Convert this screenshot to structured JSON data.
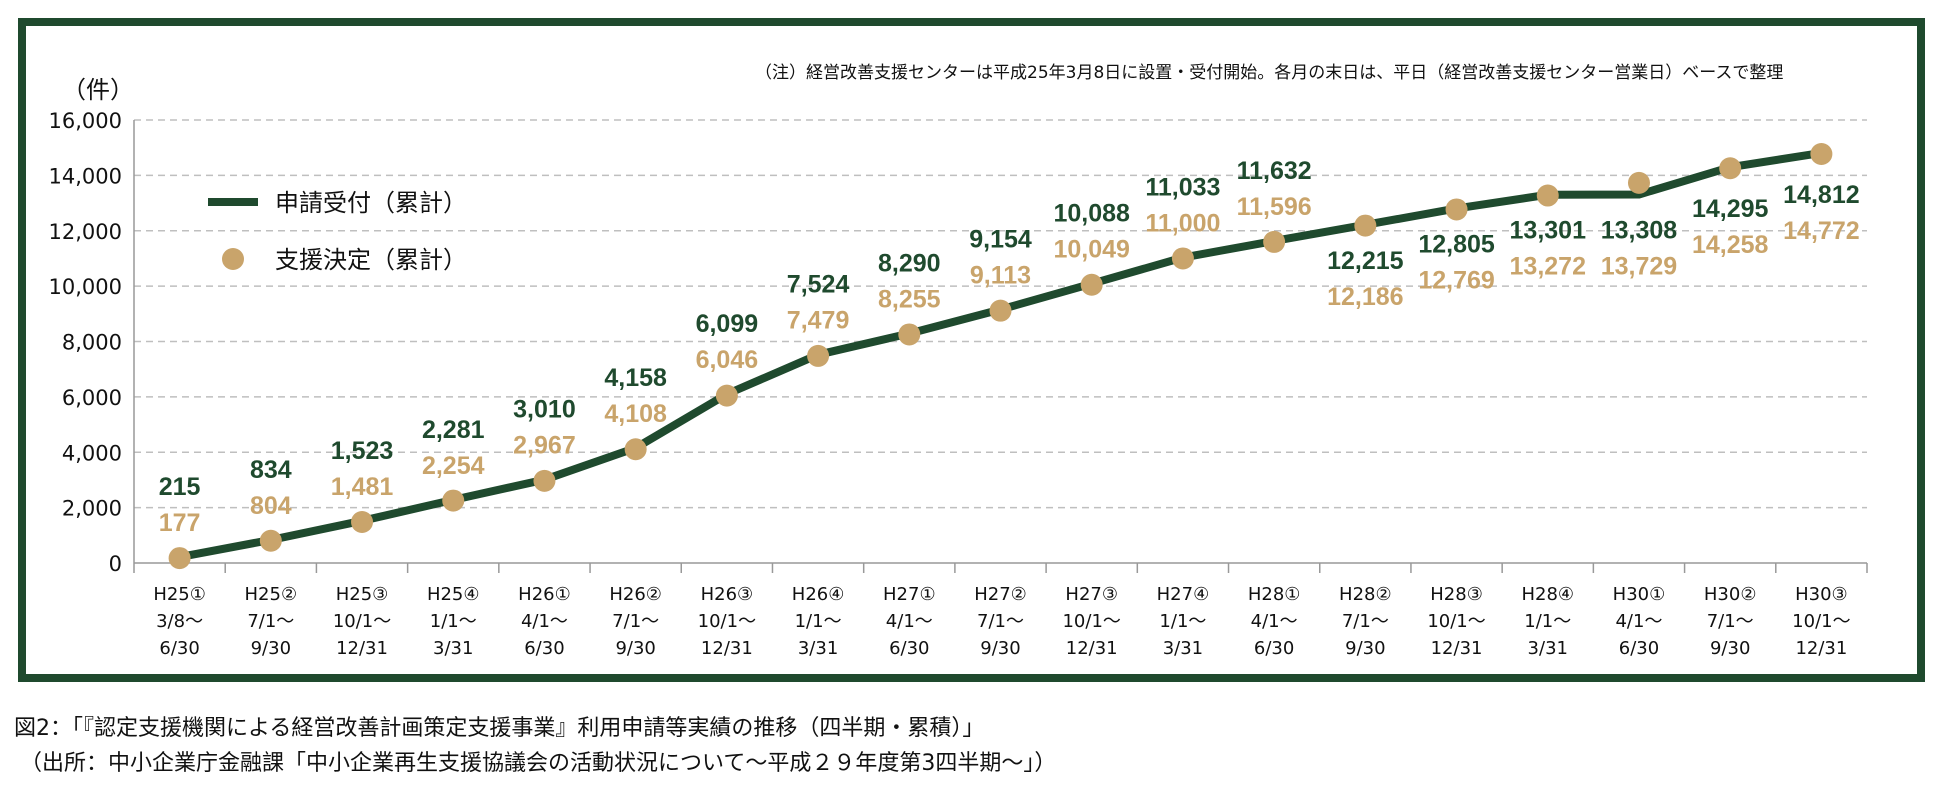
{
  "note": "（注）経営改善支援センターは平成25年3月8日に設置・受付開始。各月の末日は、平日（経営改善支援センター営業日）ベースで整理",
  "unit": "（件）",
  "caption": "図2：「『認定支援機関による経営改善計画策定支援事業』利用申請等実績の推移（四半期・累積）」",
  "source": "（出所：中小企業庁金融課「中小企業再生支援協議会の活動状況について〜平成２９年度第3四半期〜」）",
  "colors": {
    "green": "#1f4a2e",
    "tan": "#c9a46b",
    "grid": "#bfbfbf"
  },
  "chart_data": {
    "type": "line",
    "ylim": [
      0,
      16000
    ],
    "yticks": [
      "0",
      "2,000",
      "4,000",
      "6,000",
      "8,000",
      "10,000",
      "12,000",
      "14,000",
      "16,000"
    ],
    "categories": [
      [
        "H25①",
        "3/8〜",
        "6/30"
      ],
      [
        "H25②",
        "7/1〜",
        "9/30"
      ],
      [
        "H25③",
        "10/1〜",
        "12/31"
      ],
      [
        "H25④",
        "1/1〜",
        "3/31"
      ],
      [
        "H26①",
        "4/1〜",
        "6/30"
      ],
      [
        "H26②",
        "7/1〜",
        "9/30"
      ],
      [
        "H26③",
        "10/1〜",
        "12/31"
      ],
      [
        "H26④",
        "1/1〜",
        "3/31"
      ],
      [
        "H27①",
        "4/1〜",
        "6/30"
      ],
      [
        "H27②",
        "7/1〜",
        "9/30"
      ],
      [
        "H27③",
        "10/1〜",
        "12/31"
      ],
      [
        "H27④",
        "1/1〜",
        "3/31"
      ],
      [
        "H28①",
        "4/1〜",
        "6/30"
      ],
      [
        "H28②",
        "7/1〜",
        "9/30"
      ],
      [
        "H28③",
        "10/1〜",
        "12/31"
      ],
      [
        "H28④",
        "1/1〜",
        "3/31"
      ],
      [
        "H30①",
        "4/1〜",
        "6/30"
      ],
      [
        "H30②",
        "7/1〜",
        "9/30"
      ],
      [
        "H30③",
        "10/1〜",
        "12/31"
      ]
    ],
    "series": [
      {
        "name": "申請受付（累計）",
        "mark": "line",
        "values": [
          215,
          834,
          1523,
          2281,
          3010,
          4158,
          6099,
          7524,
          8290,
          9154,
          10088,
          11033,
          11632,
          12215,
          12805,
          13301,
          13308,
          14295,
          14812
        ],
        "labels": [
          "215",
          "834",
          "1,523",
          "2,281",
          "3,010",
          "4,158",
          "6,099",
          "7,524",
          "8,290",
          "9,154",
          "10,088",
          "11,033",
          "11,632",
          "12,215",
          "12,805",
          "13,301",
          "13,308",
          "14,295",
          "14,812"
        ]
      },
      {
        "name": "支援決定（累計）",
        "mark": "dot",
        "values": [
          177,
          804,
          1481,
          2254,
          2967,
          4108,
          6046,
          7479,
          8255,
          9113,
          10049,
          11000,
          11596,
          12186,
          12769,
          13272,
          13729,
          14258,
          14772
        ],
        "labels": [
          "177",
          "804",
          "1,481",
          "2,254",
          "2,967",
          "4,108",
          "6,046",
          "7,479",
          "8,255",
          "9,113",
          "10,049",
          "11,000",
          "11,596",
          "12,186",
          "12,769",
          "13,272",
          "13,729",
          "14,258",
          "14,772"
        ]
      }
    ]
  }
}
